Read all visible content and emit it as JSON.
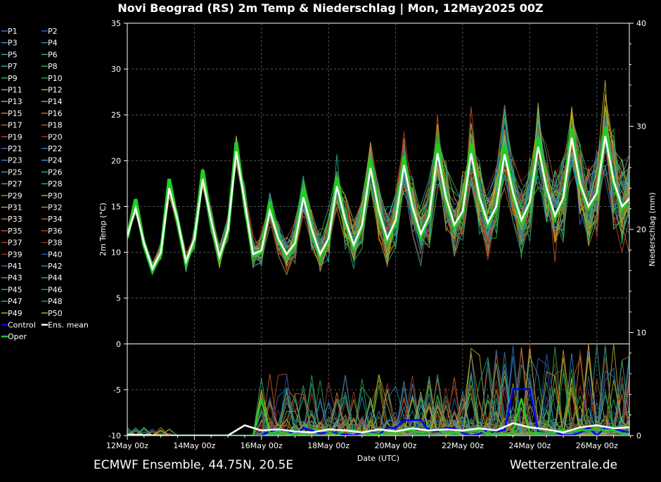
{
  "header": {
    "title": "Novi Beograd  (RS)  2m Temp & Niederschlag | Mon, 12May2025 00Z"
  },
  "footer": {
    "left": "ECMWF Ensemble, 44.75N, 20.5E",
    "right": "Wetterzentrale.de"
  },
  "chart_data": {
    "type": "line",
    "title": "Novi Beograd  (RS)  2m Temp & Niederschlag | Mon, 12May2025 00Z",
    "xlabel": "Date (UTC)",
    "ylabel": "2m Temp (°C)",
    "y2label": "Niederschlag (mm)",
    "ylim": [
      -10,
      35
    ],
    "y2lim": [
      0,
      40
    ],
    "yticks": [
      -10,
      -5,
      0,
      5,
      10,
      15,
      20,
      25,
      30,
      35
    ],
    "y2ticks": [
      0,
      10,
      20,
      30,
      40
    ],
    "xticks": [
      "12May 00z",
      "14May 00z",
      "16May 00z",
      "18May 00z",
      "20May 00z",
      "22May 00z",
      "24May 00z",
      "26May 00z"
    ],
    "grid": true,
    "legend_position": "left",
    "legend": [
      "P1",
      "P2",
      "P3",
      "P4",
      "P5",
      "P6",
      "P7",
      "P8",
      "P9",
      "P10",
      "P11",
      "P12",
      "P13",
      "P14",
      "P15",
      "P16",
      "P17",
      "P18",
      "P19",
      "P20",
      "P21",
      "P22",
      "P23",
      "P24",
      "P25",
      "P26",
      "P27",
      "P28",
      "P29",
      "P30",
      "P31",
      "P32",
      "P33",
      "P34",
      "P35",
      "P36",
      "P37",
      "P38",
      "P39",
      "P40",
      "P41",
      "P42",
      "P43",
      "P44",
      "P45",
      "P46",
      "P47",
      "P48",
      "P49",
      "P50",
      "Control",
      "Ens. mean",
      "Oper"
    ],
    "series_colors": [
      "#4472c4",
      "#2a62b8",
      "#3a8fc8",
      "#2a90b0",
      "#3aa0b8",
      "#20a8a0",
      "#30b090",
      "#28b070",
      "#30b050",
      "#20a830",
      "#98b030",
      "#b0b030",
      "#c8a030",
      "#c89020",
      "#c88030",
      "#c07020",
      "#c06030",
      "#c05020",
      "#b84030",
      "#a83020",
      "#4060c0",
      "#3070c8",
      "#3080c0",
      "#2898c0",
      "#30a0a8",
      "#20a890",
      "#30b080",
      "#20b060",
      "#50b030",
      "#a8b020",
      "#c0a020",
      "#c08828",
      "#c07830",
      "#b86028",
      "#b05030",
      "#a84828",
      "#a04030",
      "#983020",
      "#9a2a20",
      "#2050b0",
      "#3868c0",
      "#2a88b8",
      "#30a0b0",
      "#20a898",
      "#30b078",
      "#20a850",
      "#38b040",
      "#28a028",
      "#b8b020",
      "#c0a818",
      "#0000ff",
      "#ffffff",
      "#22cc22"
    ],
    "temp_ens_mean": {
      "x_days": [
        0,
        0.25,
        0.5,
        0.75,
        1,
        1.25,
        1.5,
        1.75,
        2,
        2.25,
        2.5,
        2.75,
        3,
        3.25,
        3.5,
        3.75,
        4,
        4.25,
        4.5,
        4.75,
        5,
        5.25,
        5.5,
        5.75,
        6,
        6.25,
        6.5,
        6.75,
        7,
        7.25,
        7.5,
        7.75,
        8,
        8.25,
        8.5,
        8.75,
        9,
        9.25,
        9.5,
        9.75,
        10,
        10.25,
        10.5,
        10.75,
        11,
        11.25,
        11.5,
        11.75,
        12,
        12.25,
        12.5,
        12.75,
        13,
        13.25,
        13.5,
        13.75,
        14,
        14.25,
        14.5,
        14.75,
        15
      ],
      "values": [
        11.8,
        14.8,
        11.0,
        8.2,
        10.0,
        17.0,
        13.5,
        9.0,
        11.5,
        18.0,
        13.5,
        9.5,
        12.5,
        21.0,
        15.5,
        9.8,
        10.2,
        14.5,
        11.5,
        9.8,
        11.0,
        16.0,
        12.5,
        9.8,
        11.5,
        17.2,
        13.5,
        10.8,
        13.0,
        19.2,
        14.5,
        11.5,
        13.5,
        19.5,
        15.0,
        12.0,
        14.0,
        20.8,
        16.0,
        13.0,
        14.5,
        20.8,
        16.0,
        13.2,
        15.0,
        20.7,
        16.5,
        13.5,
        15.5,
        21.5,
        17.0,
        14.0,
        16.0,
        22.5,
        17.5,
        15.0,
        16.5,
        22.7,
        17.8,
        15.0,
        16.0
      ]
    },
    "precip_ens_mean_mm": {
      "x_days": [
        0,
        1,
        2,
        3,
        3.5,
        4,
        4.5,
        5,
        5.5,
        6,
        6.5,
        7,
        7.5,
        8,
        8.5,
        9,
        9.5,
        10,
        10.5,
        11,
        11.5,
        12,
        12.5,
        13,
        13.5,
        14,
        14.5,
        15
      ],
      "values": [
        0.1,
        0.0,
        0.0,
        0.0,
        1.0,
        0.5,
        0.6,
        0.4,
        0.3,
        0.6,
        0.5,
        0.3,
        0.6,
        0.4,
        0.7,
        0.5,
        0.6,
        0.5,
        0.7,
        0.5,
        1.2,
        0.8,
        0.6,
        0.3,
        0.8,
        1.0,
        0.7,
        0.8
      ]
    }
  }
}
